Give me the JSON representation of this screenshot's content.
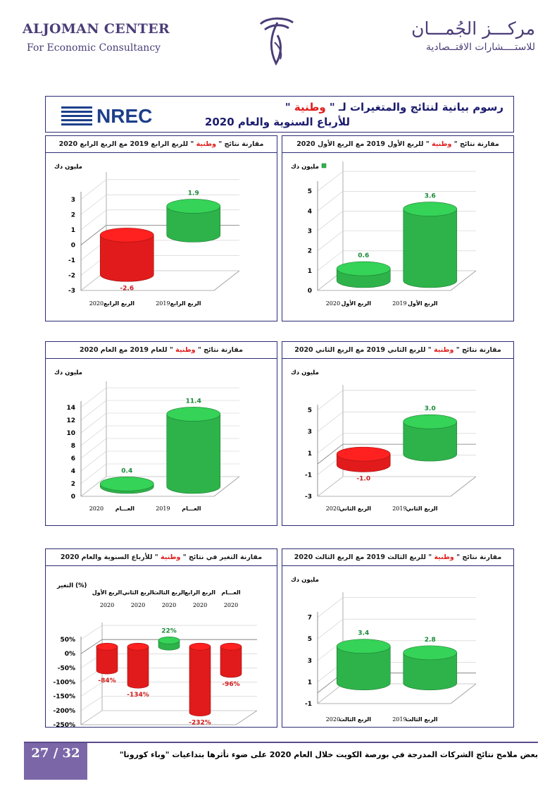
{
  "header": {
    "brand_en_line1": "ALJOMAN CENTER",
    "brand_en_line2": "For Economic Consultancy",
    "brand_ar_line1": "مركـــز الجُمـــان",
    "brand_ar_line2": "للاستــــشارات الاقتــصادية"
  },
  "banner": {
    "logo_text": "NREC",
    "title_line1_pre": "رسوم بيانية لنتائج والمتغيرات لـ \"",
    "title_line1_company": " وطنية ",
    "title_line1_post": "\"",
    "title_line2": "للأرباع السنوية والعام 2020"
  },
  "colors": {
    "positive": "#2db34a",
    "negative": "#e11b1b",
    "frame": "#2c2c74",
    "footer_box": "#7b67a8"
  },
  "panels": [
    {
      "id": "q1",
      "title_pre": "مقارنة نتائج \"",
      "title_company": " وطنية ",
      "title_post": "\" للربع الأول 2019 مع الربع الأول 2020",
      "unit": "مليون دك",
      "legend_marker": true
    },
    {
      "id": "q4",
      "title_pre": "مقارنة نتائج \"",
      "title_company": " وطنية ",
      "title_post": "\" للربع الرابع 2019 مع الربع الرابع 2020",
      "unit": "مليون دك",
      "legend_marker": false
    },
    {
      "id": "q2",
      "title_pre": "مقارنة نتائج \"",
      "title_company": " وطنية ",
      "title_post": "\" للربع الثاني 2019 مع الربع الثاني 2020",
      "unit": "مليون دك",
      "legend_marker": false
    },
    {
      "id": "year",
      "title_pre": "مقارنة نتائج \"",
      "title_company": " وطنية ",
      "title_post": "\" للعام 2019 مع العام 2020",
      "unit": "مليون دك",
      "legend_marker": false
    },
    {
      "id": "q3",
      "title_pre": "مقارنة نتائج \"",
      "title_company": " وطنية ",
      "title_post": "\" للربع الثالث 2019 مع الربع الثالث 2020",
      "unit": "مليون دك",
      "legend_marker": false
    },
    {
      "id": "change",
      "title_pre": "مقارنة التغير في نتائج \"",
      "title_company": " وطنية ",
      "title_post": "\" للأرباع السنوية والعام 2020",
      "unit": "التغير (%)",
      "legend_marker": false
    }
  ],
  "chart_data": [
    {
      "id": "q1",
      "type": "bar",
      "categories": [
        {
          "name": "الربع الأول",
          "year": "2020"
        },
        {
          "name": "الربع الأول",
          "year": "2019"
        }
      ],
      "values": [
        0.6,
        3.6
      ],
      "value_labels": [
        "0.6",
        "3.6"
      ],
      "yticks": [
        0,
        1,
        2,
        3,
        4,
        5
      ],
      "ytick_labels": [
        "0",
        "1",
        "2",
        "3",
        "4",
        "5"
      ],
      "ylim": [
        0,
        5.5
      ],
      "ylabel": "مليون دك"
    },
    {
      "id": "q4",
      "type": "bar",
      "categories": [
        {
          "name": "الربع الرابع",
          "year": "2020"
        },
        {
          "name": "الربع الرابع",
          "year": "2019"
        }
      ],
      "values": [
        -2.6,
        1.9
      ],
      "value_labels": [
        "-2.6",
        "1.9"
      ],
      "yticks": [
        -3,
        -2,
        -1,
        0,
        1,
        2,
        3
      ],
      "ytick_labels": [
        "-3",
        "-2",
        "-1",
        "0",
        "1",
        "2",
        "3"
      ],
      "ylim": [
        -3,
        3.5
      ],
      "ylabel": "مليون دك"
    },
    {
      "id": "q2",
      "type": "bar",
      "categories": [
        {
          "name": "الربع الثاني",
          "year": "2020"
        },
        {
          "name": "الربع الثاني",
          "year": "2019"
        }
      ],
      "values": [
        -1.0,
        3.0
      ],
      "value_labels": [
        "-1.0",
        "3.0"
      ],
      "yticks": [
        -3,
        -1,
        1,
        3,
        5
      ],
      "ytick_labels": [
        "-3",
        "-1",
        "1",
        "3",
        "5"
      ],
      "ylim": [
        -3,
        5.5
      ],
      "ylabel": "مليون دك"
    },
    {
      "id": "year",
      "type": "bar",
      "categories": [
        {
          "name": "العـــام",
          "year": "2020"
        },
        {
          "name": "العـــام",
          "year": "2019"
        }
      ],
      "values": [
        0.4,
        11.4
      ],
      "value_labels": [
        "0.4",
        "11.4"
      ],
      "yticks": [
        0,
        2,
        4,
        6,
        8,
        10,
        12,
        14
      ],
      "ytick_labels": [
        "0",
        "2",
        "4",
        "6",
        "8",
        "10",
        "12",
        "14"
      ],
      "ylim": [
        0,
        15
      ],
      "ylabel": "مليون دك"
    },
    {
      "id": "q3",
      "type": "bar",
      "categories": [
        {
          "name": "الربع الثالث",
          "year": "2020"
        },
        {
          "name": "الربع الثالث",
          "year": "2019"
        }
      ],
      "values": [
        3.4,
        2.8
      ],
      "value_labels": [
        "3.4",
        "2.8"
      ],
      "yticks": [
        -1,
        1,
        3,
        5,
        7
      ],
      "ytick_labels": [
        "-1",
        "1",
        "3",
        "5",
        "7"
      ],
      "ylim": [
        -1,
        7.5
      ],
      "ylabel": "مليون دك"
    },
    {
      "id": "change",
      "type": "bar",
      "categories": [
        {
          "name": "الربع الأول",
          "year": "2020"
        },
        {
          "name": "الربع الثاني",
          "year": "2020"
        },
        {
          "name": "الربع الثالث",
          "year": "2020"
        },
        {
          "name": "الربع الرابع",
          "year": "2020"
        },
        {
          "name": "العـــام",
          "year": "2020"
        }
      ],
      "values": [
        -84,
        -134,
        22,
        -232,
        -96
      ],
      "value_labels": [
        "-84%",
        "-134%",
        "22%",
        "-232%",
        "-96%"
      ],
      "yticks": [
        -250,
        -200,
        -150,
        -100,
        -50,
        0,
        50
      ],
      "ytick_labels": [
        "-250%",
        "-200%",
        "-150%",
        "-100%",
        "-50%",
        "0%",
        "50%"
      ],
      "ylim": [
        -250,
        60
      ],
      "ylabel": "التغير (%)"
    }
  ],
  "footer": {
    "page": "27 / 32",
    "text": "بعض ملامح نتائج الشركات المدرجة في بورصة الكويت خلال العام 2020 على ضوء تأثرها بتداعيات \"وباء كورونا\""
  }
}
